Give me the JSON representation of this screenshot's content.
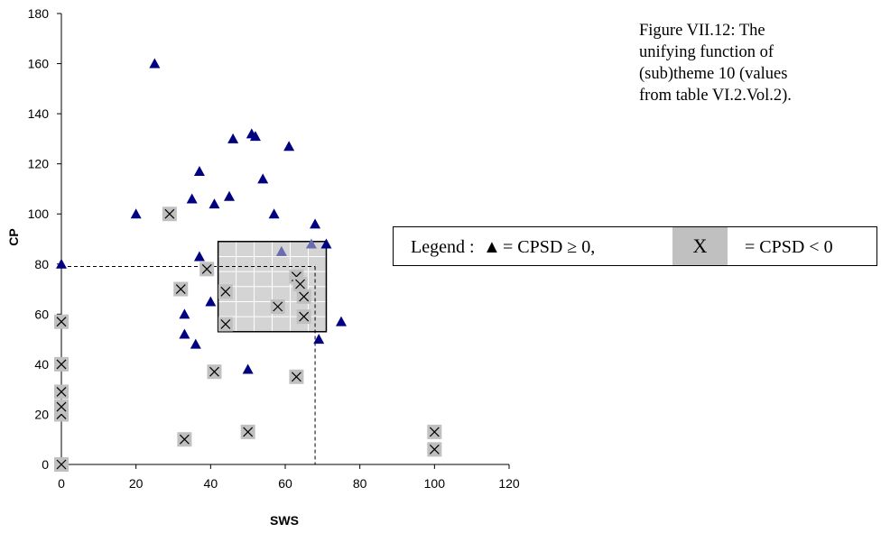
{
  "caption": {
    "lines": [
      "Figure VII.12: The",
      "unifying function of",
      "(sub)theme 10 (values",
      "from table VI.2.Vol.2)."
    ]
  },
  "legend": {
    "prefix": "Legend :",
    "triangle_symbol": "▲",
    "triangle_text": "= CPSD ≥ 0,",
    "cross_symbol": "X",
    "cross_text": "= CPSD < 0"
  },
  "colors": {
    "triangle": "#000080",
    "triangle_highlight": "#6b6bb0",
    "marker_box": "#c0c0c0",
    "rect_fill": "#d4d4d4",
    "grid": "#ffffff"
  },
  "chart_data": {
    "type": "scatter",
    "xlabel": "SWS",
    "ylabel": "CP",
    "xlim": [
      0,
      120
    ],
    "ylim": [
      0,
      180
    ],
    "xticks": [
      0,
      20,
      40,
      60,
      80,
      100,
      120
    ],
    "yticks": [
      0,
      20,
      40,
      60,
      80,
      100,
      120,
      140,
      160,
      180
    ],
    "series": [
      {
        "marker": "triangle",
        "points": [
          [
            0,
            80
          ],
          [
            20,
            100
          ],
          [
            25,
            160
          ],
          [
            33,
            52
          ],
          [
            33,
            60
          ],
          [
            35,
            106
          ],
          [
            36,
            48
          ],
          [
            37,
            83
          ],
          [
            37,
            117
          ],
          [
            40,
            65
          ],
          [
            41,
            104
          ],
          [
            45,
            107
          ],
          [
            46,
            130
          ],
          [
            50,
            38
          ],
          [
            51,
            132
          ],
          [
            52,
            131
          ],
          [
            54,
            114
          ],
          [
            57,
            100
          ],
          [
            59,
            85
          ],
          [
            61,
            127
          ],
          [
            67,
            88
          ],
          [
            68,
            96
          ],
          [
            69,
            50
          ],
          [
            71,
            88
          ],
          [
            75,
            57
          ]
        ]
      },
      {
        "marker": "cross",
        "points": [
          [
            0,
            0
          ],
          [
            0,
            20
          ],
          [
            0,
            23
          ],
          [
            0,
            29
          ],
          [
            0,
            40
          ],
          [
            0,
            57
          ],
          [
            29,
            100
          ],
          [
            32,
            70
          ],
          [
            33,
            10
          ],
          [
            39,
            78
          ],
          [
            41,
            37
          ],
          [
            44,
            56
          ],
          [
            44,
            69
          ],
          [
            50,
            13
          ],
          [
            58,
            63
          ],
          [
            63,
            35
          ],
          [
            63,
            75
          ],
          [
            64,
            72
          ],
          [
            65,
            59
          ],
          [
            65,
            67
          ],
          [
            100,
            6
          ],
          [
            100,
            13
          ]
        ]
      }
    ],
    "highlight_rect": {
      "x": [
        42,
        71
      ],
      "y": [
        53,
        89
      ],
      "grid": true
    },
    "reference_point": {
      "x": 68,
      "y": 79,
      "dashed_to_axes": true
    }
  }
}
